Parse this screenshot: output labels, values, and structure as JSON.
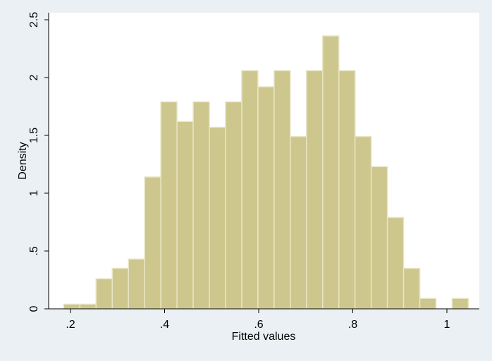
{
  "chart_data": {
    "type": "bar",
    "title": "",
    "xlabel": "Fitted values",
    "ylabel": "Density",
    "xlim": [
      0.18,
      1.06
    ],
    "ylim": [
      0,
      2.5
    ],
    "x_ticks": [
      0.2,
      0.4,
      0.6,
      0.8,
      1.0
    ],
    "x_tick_labels": [
      ".2",
      ".4",
      ".6",
      ".8",
      "1"
    ],
    "y_ticks": [
      0,
      0.5,
      1,
      1.5,
      2,
      2.5
    ],
    "y_tick_labels": [
      "0",
      ".5",
      "1",
      "1.5",
      "2",
      "2.5"
    ],
    "bin_width": 0.0344,
    "bins_start": [
      0.1856,
      0.22,
      0.2544,
      0.2888,
      0.3232,
      0.3576,
      0.392,
      0.4264,
      0.4608,
      0.4952,
      0.5296,
      0.564,
      0.5984,
      0.6328,
      0.6672,
      0.7016,
      0.736,
      0.7704,
      0.8048,
      0.8392,
      0.8736,
      0.908,
      0.9424,
      0.9768,
      1.0112
    ],
    "values": [
      0.04,
      0.04,
      0.26,
      0.35,
      0.43,
      1.14,
      1.79,
      1.62,
      1.79,
      1.57,
      1.79,
      2.06,
      1.92,
      2.06,
      1.49,
      2.06,
      2.36,
      2.06,
      1.49,
      1.23,
      0.79,
      0.35,
      0.09,
      0.0,
      0.09
    ],
    "bar_color": "#cdc78e",
    "bar_edge_color": "#e8e5c4",
    "plot_background": "#ffffff",
    "outer_background": "#eaf0f3",
    "grid": false,
    "legend": "none"
  }
}
